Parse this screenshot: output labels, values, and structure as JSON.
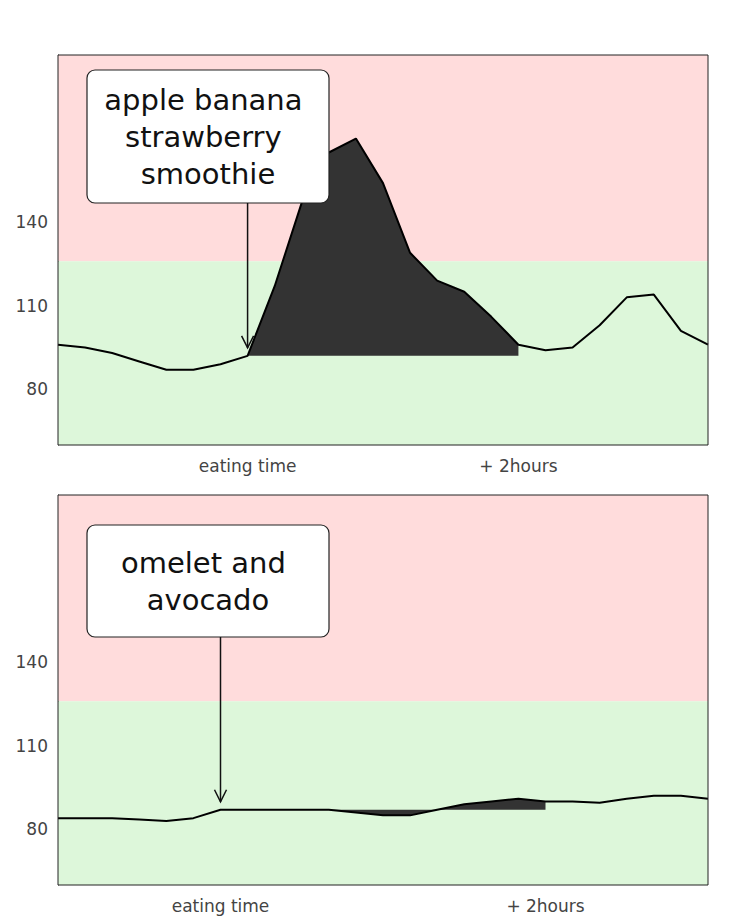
{
  "chart_data": [
    {
      "type": "line",
      "annotation": "apple banana strawberry smoothie",
      "categories": [
        null,
        null,
        null,
        null,
        null,
        null,
        null,
        "eating time",
        null,
        null,
        null,
        null,
        null,
        null,
        null,
        null,
        null,
        "+ 2hours",
        null,
        null,
        null,
        null,
        null,
        null,
        null
      ],
      "values": [
        96,
        95,
        93,
        90,
        87,
        87,
        89,
        92,
        117,
        147,
        165,
        170,
        154,
        129,
        119,
        115,
        106,
        96,
        94,
        95,
        103,
        113,
        114,
        101,
        96
      ],
      "color": "#000000",
      "ylim": [
        60,
        200
      ],
      "yticks": [
        80,
        110,
        140
      ],
      "threshold": 126,
      "baseline": 92,
      "grid": false
    },
    {
      "type": "line",
      "annotation": "omelet and avocado",
      "categories": [
        null,
        null,
        null,
        null,
        null,
        null,
        "eating time",
        null,
        null,
        null,
        null,
        null,
        null,
        null,
        null,
        null,
        null,
        null,
        "+ 2hours",
        null,
        null,
        null,
        null,
        null,
        null
      ],
      "values": [
        84,
        84,
        84,
        83.5,
        83,
        84,
        87,
        87,
        87,
        87,
        87,
        86,
        85,
        85,
        87,
        89,
        90,
        91,
        90,
        90,
        89.5,
        91,
        92,
        92,
        91
      ],
      "color": "#000000",
      "ylim": [
        60,
        200
      ],
      "yticks": [
        80,
        110,
        140
      ],
      "threshold": 126,
      "baseline": 87,
      "grid": false
    }
  ]
}
